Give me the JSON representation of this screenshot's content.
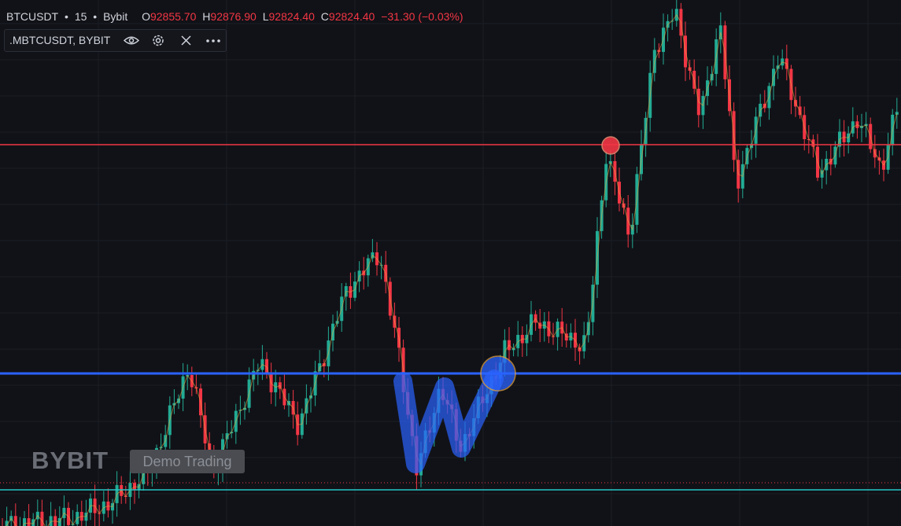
{
  "header": {
    "symbol": "BTCUSDT",
    "separator": "•",
    "interval": "15",
    "exchange": "Bybit",
    "ohlc": [
      {
        "label": "O",
        "value": "92855.70"
      },
      {
        "label": "H",
        "value": "92876.90"
      },
      {
        "label": "L",
        "value": "92824.40"
      },
      {
        "label": "C",
        "value": "92824.40"
      }
    ],
    "change": "−31.30 (−0.03%)"
  },
  "indicator": {
    "name": ".MBTCUSDT, BYBIT"
  },
  "watermark": {
    "brand": "BYBIT",
    "badge": "Demo Trading"
  }
}
